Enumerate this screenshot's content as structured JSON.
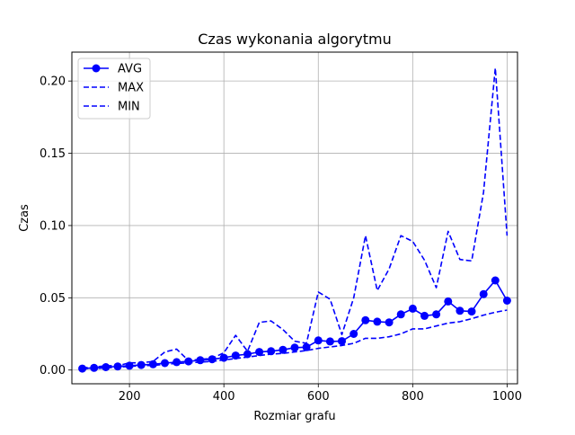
{
  "chart_data": {
    "type": "line",
    "title": "Czas wykonania algorytmu",
    "xlabel": "Rozmiar grafu",
    "ylabel": "Czas",
    "xlim": [
      78,
      1022
    ],
    "ylim": [
      -0.0095,
      0.22
    ],
    "grid": true,
    "legend_position": "top-left",
    "x_ticks": [
      200,
      400,
      600,
      800,
      1000
    ],
    "y_ticks": [
      0.0,
      0.05,
      0.1,
      0.15,
      0.2
    ],
    "x_tick_labels": [
      "200",
      "400",
      "600",
      "800",
      "1000"
    ],
    "y_tick_labels": [
      "0.00",
      "0.05",
      "0.10",
      "0.15",
      "0.20"
    ],
    "x": [
      100,
      125,
      150,
      175,
      200,
      225,
      250,
      275,
      300,
      325,
      350,
      375,
      400,
      425,
      450,
      475,
      500,
      525,
      550,
      575,
      600,
      625,
      650,
      675,
      700,
      725,
      750,
      775,
      800,
      825,
      850,
      875,
      900,
      925,
      950,
      975,
      1000
    ],
    "series": [
      {
        "name": "AVG",
        "style": "solid-marker",
        "color": "#0000ff",
        "values": [
          0.001,
          0.0015,
          0.002,
          0.0025,
          0.003,
          0.0035,
          0.004,
          0.0048,
          0.0055,
          0.006,
          0.0068,
          0.0075,
          0.0085,
          0.01,
          0.011,
          0.0125,
          0.013,
          0.014,
          0.0155,
          0.0158,
          0.0205,
          0.0198,
          0.02,
          0.025,
          0.0345,
          0.0335,
          0.033,
          0.0385,
          0.0425,
          0.0375,
          0.0385,
          0.0475,
          0.041,
          0.0405,
          0.0525,
          0.062,
          0.048
        ]
      },
      {
        "name": "MAX",
        "style": "dashed",
        "color": "#0000ff",
        "values": [
          0.0015,
          0.002,
          0.003,
          0.003,
          0.005,
          0.005,
          0.006,
          0.0125,
          0.0145,
          0.0065,
          0.0075,
          0.008,
          0.012,
          0.024,
          0.013,
          0.033,
          0.034,
          0.028,
          0.02,
          0.0185,
          0.054,
          0.049,
          0.0245,
          0.05,
          0.093,
          0.055,
          0.07,
          0.093,
          0.089,
          0.076,
          0.057,
          0.096,
          0.0765,
          0.0755,
          0.123,
          0.209,
          0.093
        ]
      },
      {
        "name": "MIN",
        "style": "dashed",
        "color": "#0000ff",
        "values": [
          0.0008,
          0.001,
          0.0015,
          0.002,
          0.0025,
          0.003,
          0.0032,
          0.004,
          0.0045,
          0.005,
          0.0055,
          0.006,
          0.007,
          0.008,
          0.009,
          0.01,
          0.011,
          0.0115,
          0.0125,
          0.0135,
          0.015,
          0.016,
          0.017,
          0.0185,
          0.022,
          0.022,
          0.023,
          0.025,
          0.0285,
          0.0285,
          0.0305,
          0.0325,
          0.0335,
          0.0355,
          0.038,
          0.04,
          0.0415
        ]
      }
    ]
  }
}
